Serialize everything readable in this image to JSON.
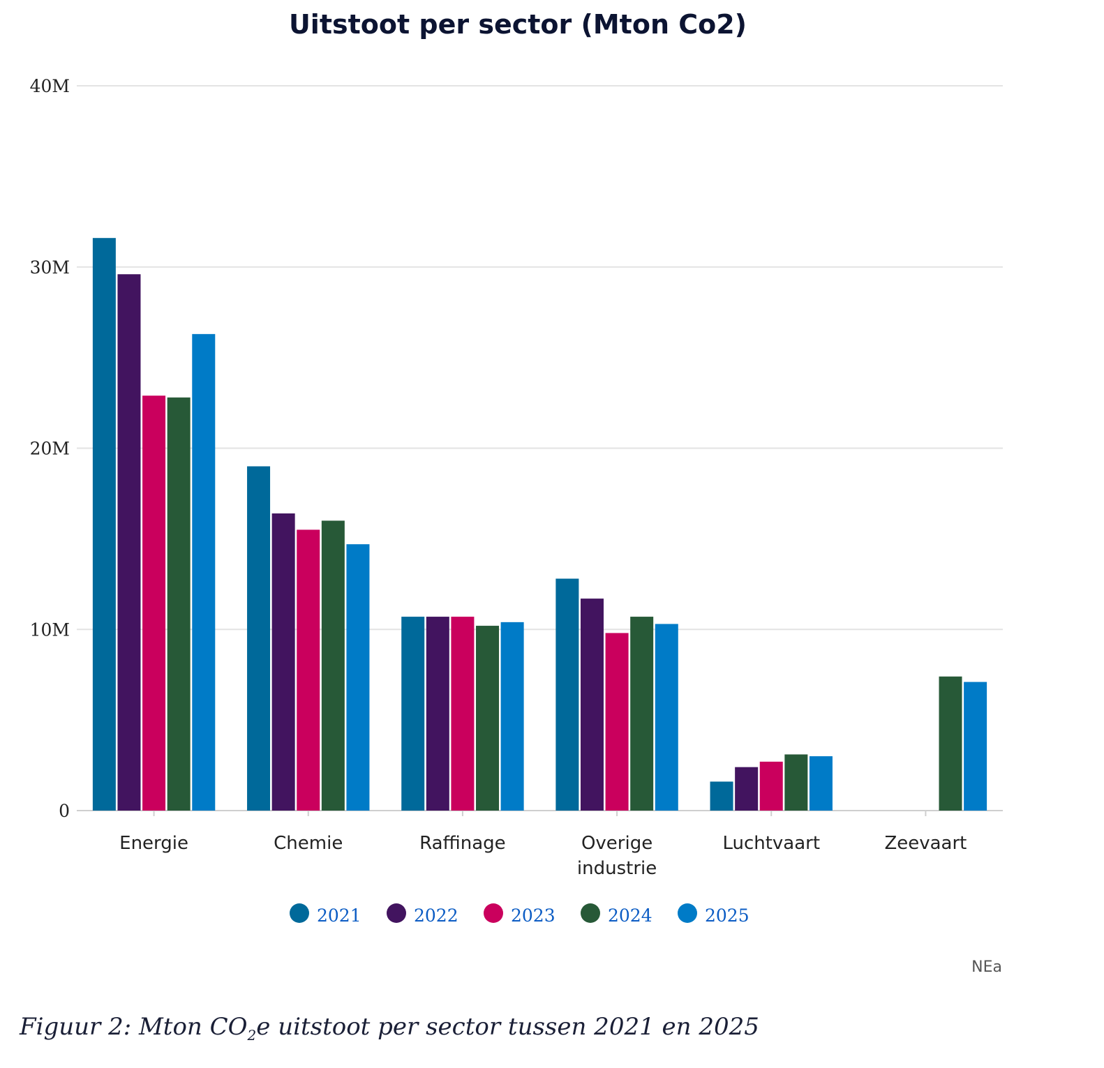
{
  "chart_data": {
    "type": "bar",
    "title": "Uitstoot per sector (Mton Co2)",
    "xlabel": "",
    "ylabel": "",
    "categories": [
      [
        "Energie"
      ],
      [
        "Chemie"
      ],
      [
        "Raffinage"
      ],
      [
        "Overige",
        "industrie"
      ],
      [
        "Luchtvaart"
      ],
      [
        "Zeevaart"
      ]
    ],
    "series": [
      {
        "name": "2021",
        "color": "#00699a",
        "values": [
          31.6,
          19.0,
          10.7,
          12.8,
          1.6,
          null
        ]
      },
      {
        "name": "2022",
        "color": "#42145f",
        "values": [
          29.6,
          16.4,
          10.7,
          11.7,
          2.4,
          null
        ]
      },
      {
        "name": "2023",
        "color": "#ca005d",
        "values": [
          22.9,
          15.5,
          10.7,
          9.8,
          2.7,
          null
        ]
      },
      {
        "name": "2024",
        "color": "#275937",
        "values": [
          22.8,
          16.0,
          10.2,
          10.7,
          3.1,
          7.4
        ]
      },
      {
        "name": "2025",
        "color": "#007bc7",
        "values": [
          26.3,
          14.7,
          10.4,
          10.3,
          3.0,
          7.1
        ]
      }
    ],
    "ylim": [
      0,
      40
    ],
    "yticks": [
      0,
      10,
      20,
      30,
      40
    ],
    "ytick_labels": [
      "0",
      "10M",
      "20M",
      "30M",
      "40M"
    ],
    "grid": true,
    "legend_position": "bottom-center",
    "source_label": "NEa",
    "legend_text_color": "#0b5cc4"
  },
  "caption": {
    "prefix": "Figuur 2: Mton CO",
    "subscript": "2",
    "suffix": "e uitstoot per sector tussen 2021 en 2025"
  }
}
